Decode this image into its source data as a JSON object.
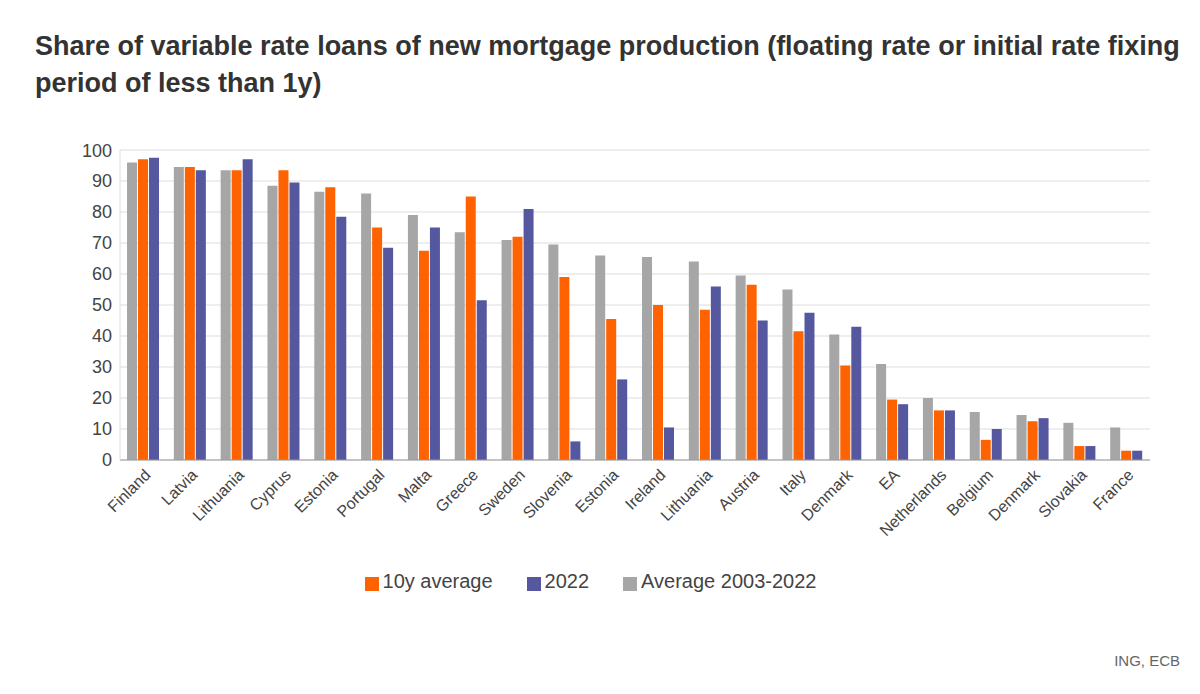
{
  "chart_data": {
    "type": "bar",
    "title": "Share of variable rate loans of new mortgage production (floating rate or initial rate fixing period of less than 1y)",
    "source": "ING, ECB",
    "categories": [
      "Finland",
      "Latvia",
      "Lithuania",
      "Cyprus",
      "Estonia",
      "Portugal",
      "Malta",
      "Greece",
      "Sweden",
      "Slovenia",
      "Estonia",
      "Ireland",
      "Lithuania",
      "Austria",
      "Italy",
      "Denmark",
      "EA",
      "Netherlands",
      "Belgium",
      "Denmark",
      "Slovakia",
      "France"
    ],
    "series": [
      {
        "name": "Average 2003-2022",
        "color": "#a6a6a6",
        "values": [
          96,
          94.5,
          93.5,
          88.5,
          86.5,
          86,
          79,
          73.5,
          71,
          69.5,
          66,
          65.5,
          64,
          59.5,
          55,
          40.5,
          31,
          20,
          15.5,
          14.5,
          12,
          10.5
        ]
      },
      {
        "name": "10y average",
        "color": "#ff6200",
        "values": [
          97,
          94.5,
          93.5,
          93.5,
          88,
          75,
          67.5,
          85,
          72,
          59,
          45.5,
          50,
          48.5,
          56.5,
          41.5,
          30.5,
          19.5,
          16,
          6.5,
          12.5,
          4.5,
          3
        ]
      },
      {
        "name": "2022",
        "color": "#55579f",
        "values": [
          97.5,
          93.5,
          97,
          89.5,
          78.5,
          68.5,
          75,
          51.5,
          81,
          6,
          26,
          10.5,
          56,
          45,
          47.5,
          43,
          18,
          16,
          10,
          13.5,
          4.5,
          3
        ]
      }
    ],
    "ylim": [
      0,
      100
    ],
    "yticks": [
      0,
      10,
      20,
      30,
      40,
      50,
      60,
      70,
      80,
      90,
      100
    ],
    "grid": true,
    "legend": "bottom"
  }
}
